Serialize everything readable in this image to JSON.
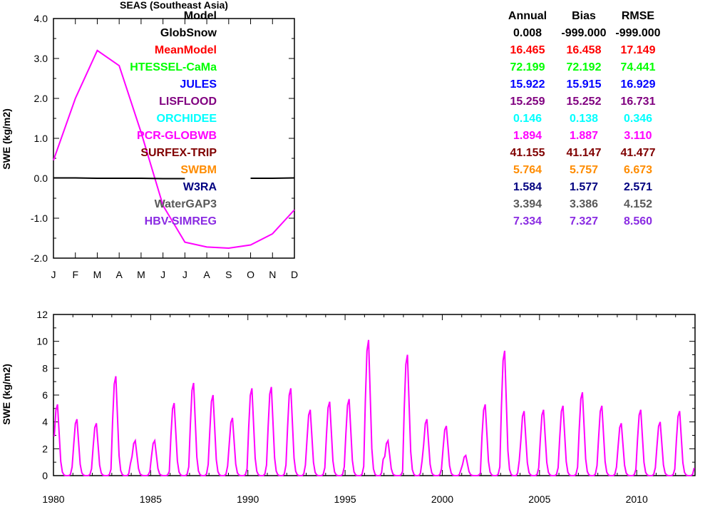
{
  "chart_data": [
    {
      "type": "line",
      "title": "SEAS (Southeast Asia)",
      "ylabel": "SWE (kg/m2)",
      "xlabel": "",
      "categories": [
        "J",
        "F",
        "M",
        "A",
        "M",
        "J",
        "J",
        "A",
        "S",
        "O",
        "N",
        "D"
      ],
      "ylim": [
        -2.0,
        4.0
      ],
      "yticks": [
        "-2.0",
        "-1.0",
        "0.0",
        "1.0",
        "2.0",
        "3.0",
        "4.0"
      ],
      "series": [
        {
          "color": "#ff00ff",
          "values": [
            0.45,
            2.0,
            3.2,
            2.82,
            1.15,
            -0.68,
            -1.6,
            -1.72,
            -1.75,
            -1.67,
            -1.39,
            -0.79
          ]
        },
        {
          "color": "#000000",
          "values": [
            0.01,
            0.01,
            0.0,
            0.0,
            0.0,
            -0.01,
            -0.01,
            null,
            null,
            0.0,
            0.0,
            0.01
          ]
        }
      ]
    },
    {
      "type": "line",
      "title": "",
      "ylabel": "SWE (kg/m2)",
      "xlabel": "",
      "xlim": [
        1980,
        2013
      ],
      "ylim": [
        0,
        12
      ],
      "xticks": [
        "1980",
        "1985",
        "1990",
        "1995",
        "2000",
        "2005",
        "2010"
      ],
      "yticks": [
        "0",
        "2",
        "4",
        "6",
        "8",
        "10",
        "12"
      ],
      "series": [
        {
          "color": "#ff00ff",
          "annual_peaks": [
            {
              "year": 1980,
              "peak": 5.3
            },
            {
              "year": 1981,
              "peak": 4.2
            },
            {
              "year": 1982,
              "peak": 3.9
            },
            {
              "year": 1983,
              "peak": 7.4
            },
            {
              "year": 1984,
              "peak": 2.6
            },
            {
              "year": 1985,
              "peak": 2.6
            },
            {
              "year": 1986,
              "peak": 5.4
            },
            {
              "year": 1987,
              "peak": 6.9
            },
            {
              "year": 1988,
              "peak": 6.0
            },
            {
              "year": 1989,
              "peak": 4.3
            },
            {
              "year": 1990,
              "peak": 6.5
            },
            {
              "year": 1991,
              "peak": 6.6
            },
            {
              "year": 1992,
              "peak": 6.5
            },
            {
              "year": 1993,
              "peak": 4.9
            },
            {
              "year": 1994,
              "peak": 5.5
            },
            {
              "year": 1995,
              "peak": 5.7
            },
            {
              "year": 1996,
              "peak": 10.1
            },
            {
              "year": 1997,
              "peak": 2.6
            },
            {
              "year": 1998,
              "peak": 9.0
            },
            {
              "year": 1999,
              "peak": 4.2
            },
            {
              "year": 2000,
              "peak": 3.7
            },
            {
              "year": 2001,
              "peak": 1.5
            },
            {
              "year": 2002,
              "peak": 5.3
            },
            {
              "year": 2003,
              "peak": 9.3
            },
            {
              "year": 2004,
              "peak": 4.8
            },
            {
              "year": 2005,
              "peak": 4.9
            },
            {
              "year": 2006,
              "peak": 5.2
            },
            {
              "year": 2007,
              "peak": 6.2
            },
            {
              "year": 2008,
              "peak": 5.2
            },
            {
              "year": 2009,
              "peak": 3.9
            },
            {
              "year": 2010,
              "peak": 4.9
            },
            {
              "year": 2011,
              "peak": 4.0
            },
            {
              "year": 2012,
              "peak": 4.8
            }
          ]
        }
      ]
    }
  ],
  "stats": {
    "headers": [
      "Model",
      "Annual",
      "Bias",
      "RMSE"
    ],
    "rows": [
      {
        "model": "GlobSnow",
        "annual": "0.008",
        "bias": "-999.000",
        "rmse": "-999.000",
        "color": "#000000"
      },
      {
        "model": "MeanModel",
        "annual": "16.465",
        "bias": "16.458",
        "rmse": "17.149",
        "color": "#ff0000"
      },
      {
        "model": "HTESSEL-CaMa",
        "annual": "72.199",
        "bias": "72.192",
        "rmse": "74.441",
        "color": "#00ff00"
      },
      {
        "model": "JULES",
        "annual": "15.922",
        "bias": "15.915",
        "rmse": "16.929",
        "color": "#0000ff"
      },
      {
        "model": "LISFLOOD",
        "annual": "15.259",
        "bias": "15.252",
        "rmse": "16.731",
        "color": "#800080"
      },
      {
        "model": "ORCHIDEE",
        "annual": "0.146",
        "bias": "0.138",
        "rmse": "0.346",
        "color": "#00ffff"
      },
      {
        "model": "PCR-GLOBWB",
        "annual": "1.894",
        "bias": "1.887",
        "rmse": "3.110",
        "color": "#ff00ff"
      },
      {
        "model": "SURFEX-TRIP",
        "annual": "41.155",
        "bias": "41.147",
        "rmse": "41.477",
        "color": "#800000"
      },
      {
        "model": "SWBM",
        "annual": "5.764",
        "bias": "5.757",
        "rmse": "6.673",
        "color": "#ff8c00"
      },
      {
        "model": "W3RA",
        "annual": "1.584",
        "bias": "1.577",
        "rmse": "2.571",
        "color": "#000080"
      },
      {
        "model": "WaterGAP3",
        "annual": "3.394",
        "bias": "3.386",
        "rmse": "4.152",
        "color": "#595959"
      },
      {
        "model": "HBV-SIMREG",
        "annual": "7.334",
        "bias": "7.327",
        "rmse": "8.560",
        "color": "#8a2be2"
      }
    ]
  }
}
